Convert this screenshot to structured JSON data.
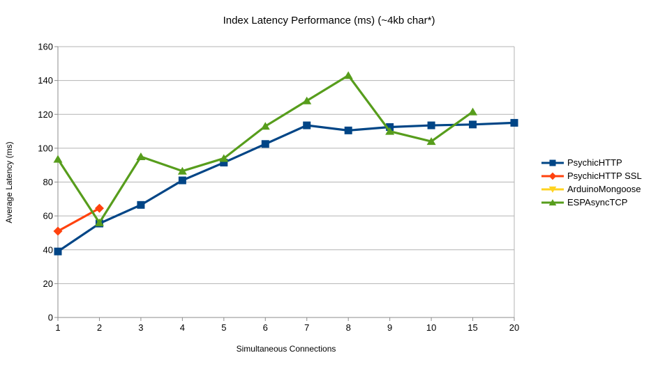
{
  "chart_data": {
    "type": "line",
    "title": "Index Latency Performance (ms) (~4kb char*)",
    "xlabel": "Simultaneous Connections",
    "ylabel": "Average Latency (ms)",
    "categories": [
      "1",
      "2",
      "3",
      "4",
      "5",
      "6",
      "7",
      "8",
      "9",
      "10",
      "15",
      "20"
    ],
    "y_ticks": [
      0,
      20,
      40,
      60,
      80,
      100,
      120,
      140,
      160
    ],
    "ylim": [
      0,
      160
    ],
    "grid": "horizontal",
    "legend_position": "right",
    "background_color": "#ffffff",
    "gridline_color": "#b3b3b3",
    "axis_color": "#8c8c8c",
    "text_color": "#000000",
    "series": [
      {
        "name": "PsychicHTTP",
        "color": "#004586",
        "marker": "square",
        "values": [
          39,
          55.5,
          66.5,
          81,
          91.5,
          102.5,
          113.5,
          110.5,
          112.5,
          113.5,
          114,
          115
        ]
      },
      {
        "name": "PsychicHTTP SSL",
        "color": "#FF420E",
        "marker": "diamond",
        "values": [
          51,
          64.5,
          null,
          null,
          null,
          null,
          null,
          null,
          null,
          null,
          null,
          null
        ]
      },
      {
        "name": "ArduinoMongoose",
        "color": "#FFD320",
        "marker": "triangle-down",
        "values": [
          null,
          null,
          null,
          null,
          null,
          null,
          null,
          null,
          null,
          null,
          null,
          null
        ]
      },
      {
        "name": "ESPAsyncTCP",
        "color": "#579D1C",
        "marker": "triangle-up",
        "values": [
          93.5,
          56,
          95,
          86.5,
          94,
          113,
          128,
          143,
          110,
          104,
          121.5,
          null
        ]
      }
    ]
  }
}
